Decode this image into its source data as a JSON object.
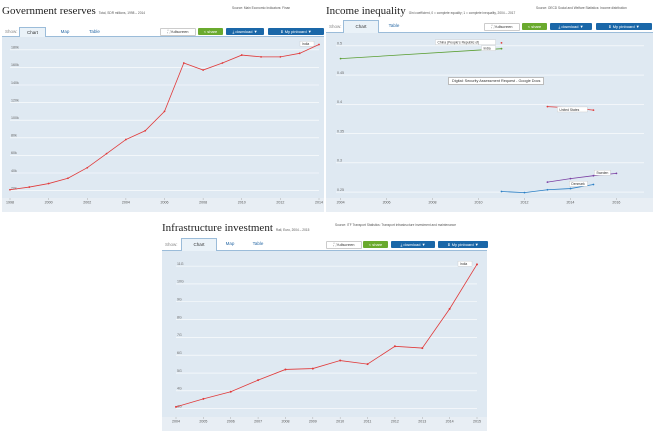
{
  "panels": {
    "gov": {
      "title": "Government reserves",
      "subtitle": "Total, SDR millions, 1998 – 2014",
      "source": "Source: Main Economic Indicators: Finan",
      "show_label": "Show:",
      "tabs": [
        "Chart",
        "Map",
        "Table"
      ],
      "buttons": {
        "fullscreen": "fullscreen",
        "share": "share",
        "download": "download ▼",
        "pinboard": "My pinboard ▼"
      }
    },
    "inc": {
      "title": "Income inequality",
      "subtitle": "Gini coefficient, 0 = complete equality; 1 = complete inequality, 2004 – 2017",
      "source": "Source: OECD Social and Welfare Statistics: Income distribution",
      "show_label": "Show:",
      "tabs": [
        "Chart",
        "Table"
      ],
      "buttons": {
        "fullscreen": "fullscreen",
        "share": "share",
        "download": "download ▼",
        "pinboard": "My pinboard ▼"
      },
      "tooltip": "Digital: Security Assessment Request - Google Docs"
    },
    "inf": {
      "title": "Infrastructure investment",
      "subtitle": "Rail, Euro, 2004 – 2015",
      "source": "Source: ITF Transport Statistics: Transport infrastructure investment and maintenance",
      "show_label": "Show:",
      "tabs": [
        "Chart",
        "Map",
        "Table"
      ],
      "buttons": {
        "fullscreen": "fullscreen",
        "share": "share",
        "download": "download ▼",
        "pinboard": "My pinboard ▼"
      }
    }
  },
  "chart_data": [
    {
      "type": "line",
      "xlabel": "",
      "ylabel": "",
      "x": [
        1998,
        1999,
        2000,
        2001,
        2002,
        2003,
        2004,
        2005,
        2006,
        2007,
        2008,
        2009,
        2010,
        2011,
        2012,
        2013,
        2014
      ],
      "xticks": [
        1998,
        2000,
        2002,
        2004,
        2006,
        2008,
        2010,
        2012,
        2014
      ],
      "yticks": [
        "20k",
        "40k",
        "60k",
        "80k",
        "100k",
        "120k",
        "140k",
        "160k",
        "180k"
      ],
      "ylim": [
        15000,
        190000
      ],
      "series": [
        {
          "name": "India",
          "color": "#e03a3a",
          "values": [
            21000,
            24000,
            28000,
            34000,
            46000,
            62000,
            78000,
            88000,
            110000,
            165000,
            157000,
            165000,
            174000,
            172000,
            172000,
            176000,
            186000
          ]
        }
      ],
      "grid": true
    },
    {
      "type": "line",
      "xlabel": "",
      "ylabel": "",
      "xticks": [
        2004,
        2006,
        2008,
        2010,
        2012,
        2014,
        2016
      ],
      "yticks": [
        "0.25",
        "0.3",
        "0.35",
        "0.4",
        "0.45",
        "0.5"
      ],
      "ylim": [
        0.245,
        0.515
      ],
      "xlim": [
        2003.8,
        2017.2
      ],
      "series": [
        {
          "name": "China (People's Republic of)",
          "color": "#e03a3a",
          "x": [
            2011
          ],
          "values": [
            0.505
          ]
        },
        {
          "name": "India",
          "color": "#5a9e32",
          "x": [
            2004,
            2011
          ],
          "values": [
            0.478,
            0.495
          ]
        },
        {
          "name": "United States",
          "color": "#e03a3a",
          "x": [
            2013,
            2014,
            2015
          ],
          "values": [
            0.396,
            0.394,
            0.39
          ]
        },
        {
          "name": "Sweden",
          "color": "#7a3fa3",
          "x": [
            2013,
            2014,
            2015,
            2016
          ],
          "values": [
            0.267,
            0.273,
            0.278,
            0.282
          ]
        },
        {
          "name": "Denmark",
          "color": "#2a7fc5",
          "x": [
            2011,
            2012,
            2013,
            2014,
            2015
          ],
          "values": [
            0.251,
            0.249,
            0.254,
            0.256,
            0.263
          ]
        }
      ],
      "grid": true
    },
    {
      "type": "line",
      "xlabel": "",
      "ylabel": "",
      "x": [
        2004,
        2005,
        2006,
        2007,
        2008,
        2009,
        2010,
        2011,
        2012,
        2013,
        2014,
        2015
      ],
      "xticks": [
        2004,
        2005,
        2006,
        2007,
        2008,
        2009,
        2010,
        2011,
        2012,
        2013,
        2014,
        2015
      ],
      "yticks": [
        "3G",
        "4G",
        "5G",
        "6G",
        "7G",
        "8G",
        "9G",
        "10G",
        "11G"
      ],
      "ylim": [
        2700000000,
        11400000000
      ],
      "series": [
        {
          "name": "India",
          "color": "#e03a3a",
          "values": [
            3100000000,
            3550000000,
            3950000000,
            4600000000,
            5200000000,
            5250000000,
            5700000000,
            5500000000,
            6500000000,
            6400000000,
            8600000000,
            11100000000
          ]
        }
      ],
      "grid": true
    }
  ]
}
